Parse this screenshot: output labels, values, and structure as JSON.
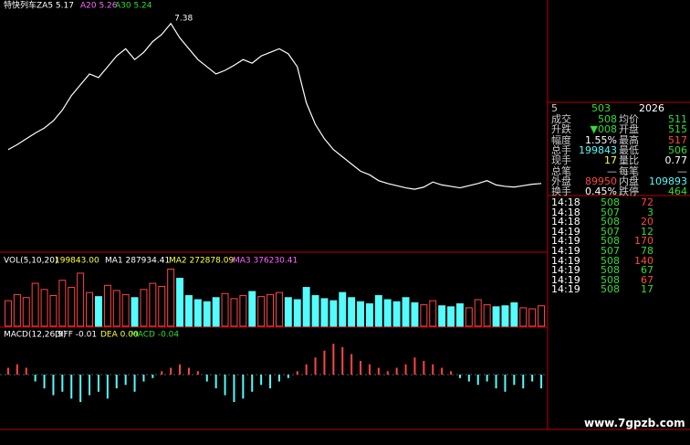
{
  "header": {
    "title": "特快列车ZA5 5.17",
    "a20": "A20 5.26",
    "a30": "A30 5.24",
    "peak": "7.38"
  },
  "price": {
    "ylim": [
      4.9,
      7.5
    ],
    "color": "#ffffff",
    "up_color": "#ff4444",
    "down_color": "#54fcfc",
    "values": [
      5.55,
      5.62,
      5.7,
      5.78,
      5.85,
      5.95,
      6.1,
      6.3,
      6.45,
      6.6,
      6.55,
      6.7,
      6.85,
      6.95,
      6.8,
      6.9,
      7.05,
      7.15,
      7.3,
      7.1,
      6.95,
      6.8,
      6.7,
      6.6,
      6.65,
      6.72,
      6.8,
      6.75,
      6.85,
      6.9,
      6.95,
      6.88,
      6.7,
      6.2,
      5.9,
      5.7,
      5.55,
      5.45,
      5.35,
      5.25,
      5.2,
      5.12,
      5.08,
      5.05,
      5.02,
      5.0,
      5.03,
      5.1,
      5.06,
      5.04,
      5.02,
      5.05,
      5.08,
      5.12,
      5.06,
      5.04,
      5.03,
      5.05,
      5.07,
      5.08
    ]
  },
  "volume": {
    "label": "VOL(5,10,20)",
    "current": "199843.00",
    "ma1": "MA1 287934.41",
    "ma2": "MA2 272878.09",
    "ma3": "MA3 376230.41",
    "ylim": [
      0,
      600000
    ],
    "values": [
      250000,
      310000,
      280000,
      420000,
      360000,
      300000,
      450000,
      380000,
      520000,
      330000,
      290000,
      400000,
      350000,
      310000,
      280000,
      360000,
      420000,
      390000,
      560000,
      470000,
      300000,
      260000,
      240000,
      280000,
      320000,
      270000,
      300000,
      340000,
      290000,
      310000,
      330000,
      280000,
      260000,
      380000,
      300000,
      270000,
      250000,
      330000,
      280000,
      240000,
      220000,
      300000,
      260000,
      240000,
      280000,
      230000,
      210000,
      250000,
      200000,
      190000,
      220000,
      180000,
      260000,
      210000,
      190000,
      200000,
      230000,
      180000,
      170000,
      199843
    ]
  },
  "macd": {
    "label": "MACD(12,26,9)",
    "diff": "DIFF -0.01",
    "dea": "DEA 0.00",
    "macd": "MACD -0.04",
    "ylim": [
      -0.12,
      0.12
    ],
    "values": [
      0.02,
      0.03,
      0.02,
      -0.02,
      -0.04,
      -0.06,
      -0.05,
      -0.07,
      -0.08,
      -0.06,
      -0.05,
      -0.07,
      -0.04,
      -0.03,
      -0.05,
      -0.02,
      -0.01,
      0.01,
      0.02,
      0.03,
      0.02,
      0.01,
      -0.02,
      -0.04,
      -0.06,
      -0.08,
      -0.07,
      -0.05,
      -0.03,
      -0.04,
      -0.02,
      -0.01,
      0.01,
      0.03,
      0.05,
      0.07,
      0.09,
      0.08,
      0.06,
      0.04,
      0.03,
      0.02,
      0.01,
      0.02,
      0.03,
      0.05,
      0.04,
      0.03,
      0.02,
      0.01,
      -0.01,
      -0.02,
      -0.03,
      -0.02,
      -0.04,
      -0.05,
      -0.03,
      -0.04,
      -0.02,
      -0.04
    ]
  },
  "quote": {
    "header": [
      "5",
      "503",
      "2026"
    ],
    "rows": [
      [
        "成交",
        "508",
        "均价",
        "511"
      ],
      [
        "升跌",
        "▼008",
        "开盘",
        "515"
      ],
      [
        "幅度",
        "1.55%",
        "最高",
        "517"
      ],
      [
        "总手",
        "199843",
        "最低",
        "506"
      ],
      [
        "现手",
        "17",
        "量比",
        "0.77"
      ],
      [
        "总笔",
        "—",
        "每笔",
        "—"
      ],
      [
        "外盘",
        "89950",
        "内盘",
        "109893"
      ],
      [
        "换手",
        "0.45%",
        "跌停",
        "464"
      ]
    ],
    "value_colors": [
      [
        "#33dd33",
        "#33dd33"
      ],
      [
        "#33dd33",
        "#33dd33"
      ],
      [
        "#ffffff",
        "#ff4444"
      ],
      [
        "#54fcfc",
        "#33dd33"
      ],
      [
        "#ffff44",
        "#ffffff"
      ],
      [
        "#cccccc",
        "#cccccc"
      ],
      [
        "#ff4444",
        "#54fcfc"
      ],
      [
        "#ffffff",
        "#33dd33"
      ]
    ]
  },
  "trades": [
    [
      "14:18",
      "508",
      "72"
    ],
    [
      "14:18",
      "507",
      "3"
    ],
    [
      "14:18",
      "508",
      "20"
    ],
    [
      "14:19",
      "507",
      "12"
    ],
    [
      "14:19",
      "508",
      "170"
    ],
    [
      "14:19",
      "507",
      "78"
    ],
    [
      "14:19",
      "508",
      "140"
    ],
    [
      "14:19",
      "508",
      "67"
    ],
    [
      "14:19",
      "508",
      "67"
    ],
    [
      "14:19",
      "508",
      "17"
    ]
  ],
  "watermark": "www.7gpzb.com"
}
